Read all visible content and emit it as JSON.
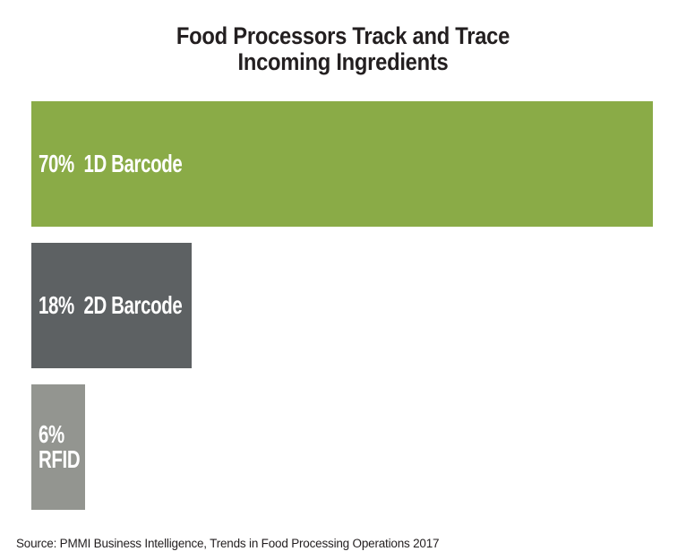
{
  "page": {
    "background": "#ffffff",
    "title_color": "#231f20",
    "label_color": "#ffffff",
    "source_color": "#231f20"
  },
  "chart_data": {
    "type": "bar",
    "orientation": "horizontal",
    "title_lines": [
      "Food Processors Track and Trace",
      "Incoming Ingredients"
    ],
    "categories": [
      "1D Barcode",
      "2D Barcode",
      "RFID"
    ],
    "values": [
      70,
      18,
      6
    ],
    "value_labels": [
      "70%",
      "18%",
      "6%"
    ],
    "xlim": [
      0,
      100
    ],
    "grid": false,
    "legend": "none",
    "axes_shown": false,
    "bars": [
      {
        "category": "1D Barcode",
        "value": 70,
        "color": "#8aab47",
        "label_lines": [
          "70%  1D Barcode"
        ]
      },
      {
        "category": "2D Barcode",
        "value": 18,
        "color": "#5d6163",
        "label_lines": [
          "18%  2D Barcode"
        ]
      },
      {
        "category": "RFID",
        "value": 6,
        "color": "#939590",
        "label_lines": [
          "6%",
          "RFID"
        ]
      }
    ],
    "source": "Source: PMMI Business Intelligence, Trends in Food Processing Operations 2017"
  }
}
